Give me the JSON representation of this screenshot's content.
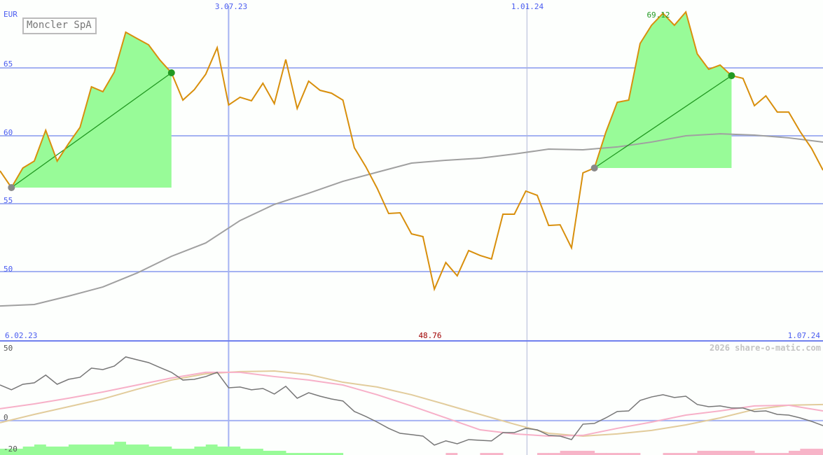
{
  "title": "Moncler SpA",
  "currency_label": "EUR",
  "watermark": "2026 share-o-matic.com",
  "colors": {
    "price_line": "#d88f0c",
    "moving_average": "#a0a0a0",
    "grid": "#a4b2f2",
    "axis_label": "#4a5cf0",
    "highlight_fill": "#98fb98",
    "trend_line": "#229922",
    "oscillator": "#777777",
    "signal_pink": "#f7b0c8",
    "signal_tan": "#e2cc9c",
    "hist_positive": "#98fb98",
    "hist_negative": "#f7b4c8",
    "low_label": "#a00000",
    "high_label": "#229922"
  },
  "chart_data": [
    {
      "type": "line",
      "panel": "price",
      "ylabel": "EUR",
      "ylim": [
        44.9,
        70
      ],
      "x_start": "6.02.23",
      "x_end": "1.07.24",
      "x_ticks": [
        {
          "label": "3.07.23",
          "index": 20
        },
        {
          "label": "1.01.24",
          "index": 46.1
        }
      ],
      "y_ticks": [
        65,
        60,
        55,
        50
      ],
      "grid": true,
      "high_label": "69.12",
      "low_label": "48.76",
      "price": [
        57.42,
        56.19,
        57.63,
        58.14,
        60.41,
        58.14,
        59.43,
        60.62,
        63.61,
        63.25,
        64.69,
        67.63,
        67.16,
        66.7,
        65.57,
        64.64,
        62.63,
        63.4,
        64.54,
        66.49,
        62.27,
        62.84,
        62.58,
        63.87,
        62.37,
        65.62,
        62.01,
        64.02,
        63.35,
        63.14,
        62.63,
        59.12,
        57.73,
        56.13,
        54.28,
        54.33,
        52.78,
        52.58,
        48.71,
        50.67,
        49.69,
        51.55,
        51.19,
        50.93,
        54.23,
        54.23,
        55.93,
        55.62,
        53.4,
        53.45,
        51.75,
        57.27,
        57.63,
        60.26,
        62.47,
        62.63,
        66.8,
        68.14,
        69.02,
        68.14,
        69.12,
        66.03,
        64.9,
        65.21,
        64.43,
        64.23,
        62.22,
        62.94,
        61.75,
        61.75,
        60.31,
        59.07,
        57.47
      ],
      "moving_average": [
        47.47,
        47.58,
        48.2,
        48.87,
        49.9,
        51.13,
        52.11,
        53.76,
        54.95,
        55.77,
        56.65,
        57.32,
        57.99,
        58.2,
        58.35,
        58.66,
        59.02,
        58.97,
        59.18,
        59.54,
        60.0,
        60.15,
        60.05,
        59.85,
        59.54
      ],
      "highlights": [
        {
          "start_index": 1,
          "end_index": 15
        },
        {
          "start_index": 52,
          "end_index": 64
        }
      ]
    },
    {
      "type": "line",
      "panel": "oscillator",
      "ylim": [
        -23.6,
        54.8
      ],
      "y_ticks": [
        50,
        0,
        -20
      ],
      "oscillator": [
        24.5,
        21.2,
        25.0,
        26.0,
        31.3,
        25.0,
        28.4,
        29.8,
        36.1,
        35.1,
        37.5,
        43.8,
        41.8,
        39.9,
        36.5,
        33.2,
        27.9,
        28.4,
        30.3,
        33.2,
        22.6,
        23.1,
        21.2,
        22.1,
        18.3,
        23.6,
        15.4,
        19.2,
        16.8,
        14.9,
        13.5,
        6.3,
        2.9,
        -1.0,
        -5.3,
        -8.7,
        -9.6,
        -10.6,
        -16.8,
        -13.9,
        -15.9,
        -13.0,
        -13.5,
        -13.9,
        -8.2,
        -8.2,
        -5.3,
        -6.3,
        -10.1,
        -10.6,
        -13.0,
        -2.4,
        -1.9,
        1.9,
        6.3,
        6.7,
        13.9,
        16.3,
        17.8,
        15.9,
        16.8,
        11.1,
        9.6,
        10.1,
        8.7,
        8.7,
        6.3,
        6.7,
        4.3,
        3.8,
        1.9,
        -0.5,
        -3.4
      ],
      "signal_pink": [
        8.2,
        11.5,
        15.4,
        19.7,
        24.5,
        29.3,
        33.2,
        33.2,
        30.3,
        27.9,
        24.5,
        17.8,
        10.1,
        1.9,
        -6.3,
        -9.1,
        -10.6,
        -10.1,
        -5.3,
        -1.0,
        3.8,
        6.7,
        10.1,
        10.6,
        6.7
      ],
      "signal_tan": [
        -1.4,
        4.3,
        9.6,
        14.9,
        21.6,
        27.9,
        32.2,
        33.7,
        34.1,
        31.7,
        26.4,
        23.1,
        17.8,
        11.1,
        4.3,
        -2.4,
        -8.7,
        -10.6,
        -9.1,
        -6.7,
        -2.9,
        1.9,
        7.7,
        10.6,
        11.1
      ],
      "histogram": [
        4.3,
        4.3,
        5.8,
        7.2,
        5.8,
        5.8,
        7.2,
        7.2,
        7.2,
        7.2,
        9.1,
        7.2,
        7.2,
        5.8,
        5.8,
        4.3,
        4.3,
        5.8,
        7.2,
        5.8,
        5.8,
        4.3,
        4.3,
        2.9,
        2.9,
        1.4,
        1.4,
        1.4,
        1.4,
        1.4,
        0,
        0,
        0,
        0,
        0,
        0,
        0,
        0,
        0,
        -1.4,
        0,
        0,
        -1.4,
        -1.4,
        0,
        0,
        0,
        -1.4,
        -1.4,
        -2.9,
        -2.9,
        -2.9,
        -1.4,
        -1.4,
        -1.4,
        -1.4,
        0,
        0,
        -1.4,
        -1.4,
        -1.4,
        -2.9,
        -2.9,
        -2.9,
        -2.9,
        -2.9,
        -1.4,
        -1.4,
        -1.4,
        -2.9,
        -4.3,
        -4.3
      ]
    }
  ]
}
